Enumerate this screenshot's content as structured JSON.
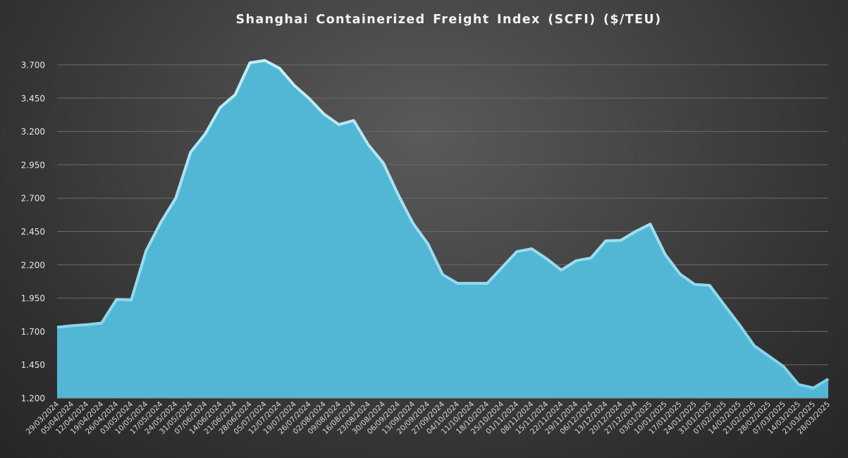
{
  "chart_data": {
    "type": "area",
    "title": "Shanghai Containerized Freight Index  (SCFI) ($/TEU)",
    "xlabel": "",
    "ylabel": "",
    "ylim": [
      1200,
      3700
    ],
    "yticks": [
      1200,
      1450,
      1700,
      1950,
      2200,
      2450,
      2700,
      2950,
      3200,
      3450,
      3700
    ],
    "ytick_labels": [
      "1.200",
      "1.450",
      "1.700",
      "1.950",
      "2.200",
      "2.450",
      "2.700",
      "2.950",
      "3.200",
      "3.450",
      "3.700"
    ],
    "grid": true,
    "legend": "none",
    "colors": {
      "area_fill": "#52b7d5",
      "area_edge": "#a8e2f2"
    },
    "x": [
      "29/03/2024",
      "05/04/2024",
      "12/04/2024",
      "19/04/2024",
      "26/04/2024",
      "03/05/2024",
      "10/05/2024",
      "17/05/2024",
      "24/05/2024",
      "31/05/2024",
      "07/06/2024",
      "14/06/2024",
      "21/06/2024",
      "28/06/2024",
      "05/07/2024",
      "12/07/2024",
      "19/07/2024",
      "26/07/2024",
      "02/08/2024",
      "09/08/2024",
      "16/08/2024",
      "23/08/2024",
      "30/08/2024",
      "06/09/2024",
      "13/09/2024",
      "20/09/2024",
      "27/09/2024",
      "04/10/2024",
      "11/10/2024",
      "18/10/2024",
      "25/10/2024",
      "01/11/2024",
      "08/11/2024",
      "15/11/2024",
      "22/11/2024",
      "29/11/2024",
      "06/12/2024",
      "13/12/2024",
      "20/12/2024",
      "27/12/2024",
      "03/01/2025",
      "10/01/2025",
      "17/01/2025",
      "24/01/2025",
      "31/01/2025",
      "07/02/2025",
      "14/02/2025",
      "21/02/2025",
      "28/02/2025",
      "07/03/2025",
      "14/03/2025",
      "21/03/2025",
      "28/03/2025"
    ],
    "series": [
      {
        "values": [
          1731,
          1743,
          1751,
          1763,
          1939,
          1936,
          2305,
          2520,
          2700,
          3044,
          3184,
          3380,
          3475,
          3715,
          3733,
          3674,
          3545,
          3447,
          3330,
          3252,
          3282,
          3098,
          2963,
          2726,
          2511,
          2358,
          2126,
          2061,
          2061,
          2061,
          2180,
          2299,
          2320,
          2246,
          2160,
          2231,
          2251,
          2380,
          2383,
          2450,
          2505,
          2278,
          2131,
          2052,
          2046,
          1897,
          1752,
          1594,
          1515,
          1436,
          1302,
          1276,
          1343
        ]
      }
    ]
  }
}
